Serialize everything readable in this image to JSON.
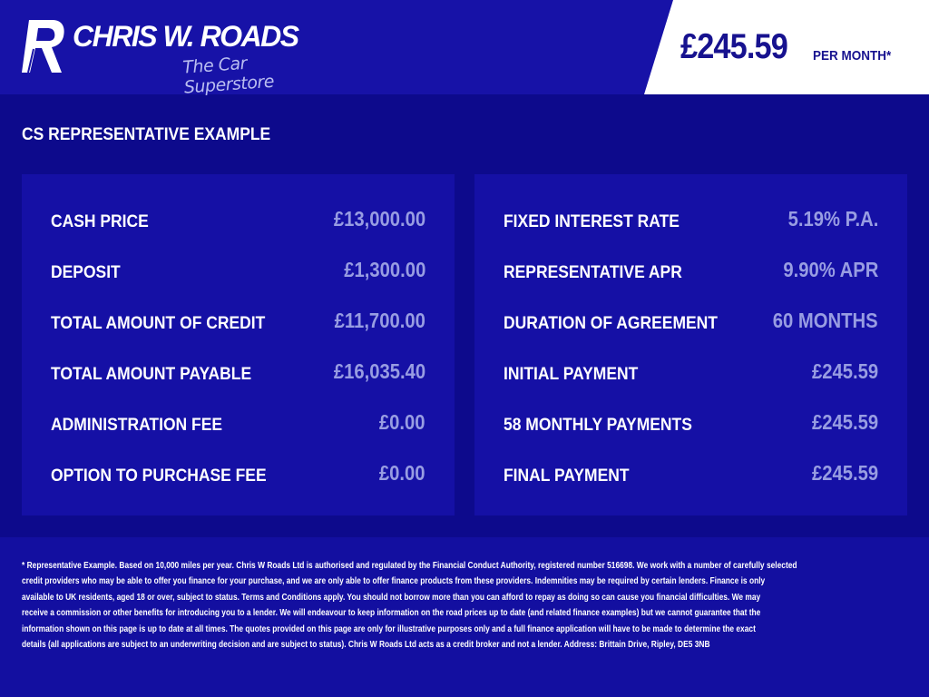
{
  "brand": {
    "name": "CHRIS W. ROADS",
    "tagline": "The Car Superstore"
  },
  "header": {
    "monthly_price": "£245.59",
    "monthly_label": "PER MONTH*"
  },
  "section_title": "CS REPRESENTATIVE EXAMPLE",
  "left_panel": [
    {
      "label": "CASH PRICE",
      "value": "£13,000.00"
    },
    {
      "label": "DEPOSIT",
      "value": "£1,300.00"
    },
    {
      "label": "TOTAL AMOUNT OF CREDIT",
      "value": "£11,700.00"
    },
    {
      "label": "TOTAL AMOUNT PAYABLE",
      "value": "£16,035.40"
    },
    {
      "label": "ADMINISTRATION FEE",
      "value": "£0.00"
    },
    {
      "label": "OPTION TO PURCHASE FEE",
      "value": "£0.00"
    }
  ],
  "right_panel": [
    {
      "label": "FIXED INTEREST RATE",
      "value": "5.19% P.A."
    },
    {
      "label": "REPRESENTATIVE APR",
      "value": "9.90% APR"
    },
    {
      "label": "DURATION OF AGREEMENT",
      "value": "60 MONTHS"
    },
    {
      "label": "INITIAL PAYMENT",
      "value": "£245.59"
    },
    {
      "label": "58 MONTHLY PAYMENTS",
      "value": "£245.59"
    },
    {
      "label": "FINAL PAYMENT",
      "value": "£245.59"
    }
  ],
  "disclaimer_lines": [
    "* Representative Example. Based on 10,000 miles per year. Chris W Roads Ltd is authorised and regulated by the Financial Conduct Authority, registered number 516698. We work with a number of carefully selected",
    "credit providers who may be able to offer you finance for your purchase, and we are only able to offer finance products from these providers. Indemnities may be required by certain lenders. Finance is only",
    "available to UK residents, aged 18 or over, subject to status. Terms and Conditions apply. You should not borrow more than you can afford to repay as doing so can cause you financial difficulties. We may",
    "receive a commission or other benefits for introducing you to a lender. We will endeavour to keep information on the road prices up to date (and related finance examples) but we cannot guarantee that the",
    "information shown on this page is up to date at all times. The quotes provided on this page are only for illustrative purposes only and a full finance application will have to be made to determine the exact",
    "details (all applications are subject to an underwriting decision and are subject to status). Chris W Roads Ltd acts as a credit broker and not a lender. Address: Brittain Drive, Ripley, DE5 3NB"
  ],
  "colors": {
    "header_bg": "#1712a7",
    "page_bg": "#0d0a8c",
    "panel_bg": "#1510a5",
    "value_text": "#989de2",
    "price_text": "#17128f"
  }
}
